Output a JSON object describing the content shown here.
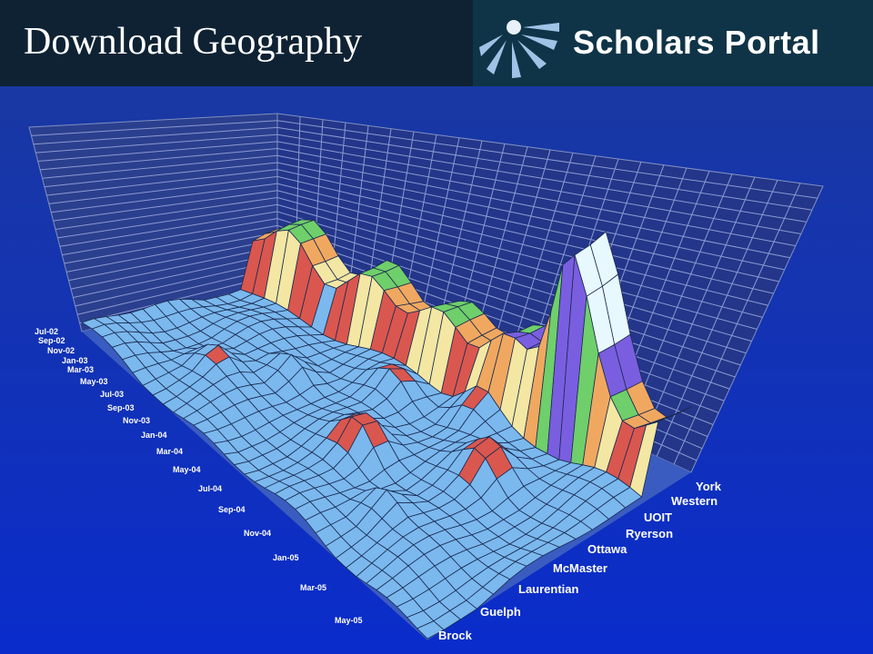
{
  "header": {
    "title": "Download Geography",
    "logo": "Scholars Portal"
  },
  "chart": {
    "dates": [
      "Jul-02",
      "Sep-02",
      "Nov-02",
      "Jan-03",
      "Mar-03",
      "May-03",
      "Jul-03",
      "Sep-03",
      "Nov-03",
      "Jan-04",
      "Mar-04",
      "May-04",
      "Jul-04",
      "Sep-04",
      "Nov-04",
      "Jan-05",
      "Mar-05",
      "May-05"
    ],
    "universities": [
      "York",
      "Western",
      "UOIT",
      "Ryerson",
      "Ottawa",
      "McMaster",
      "Laurentian",
      "Guelph",
      "Brock"
    ]
  }
}
